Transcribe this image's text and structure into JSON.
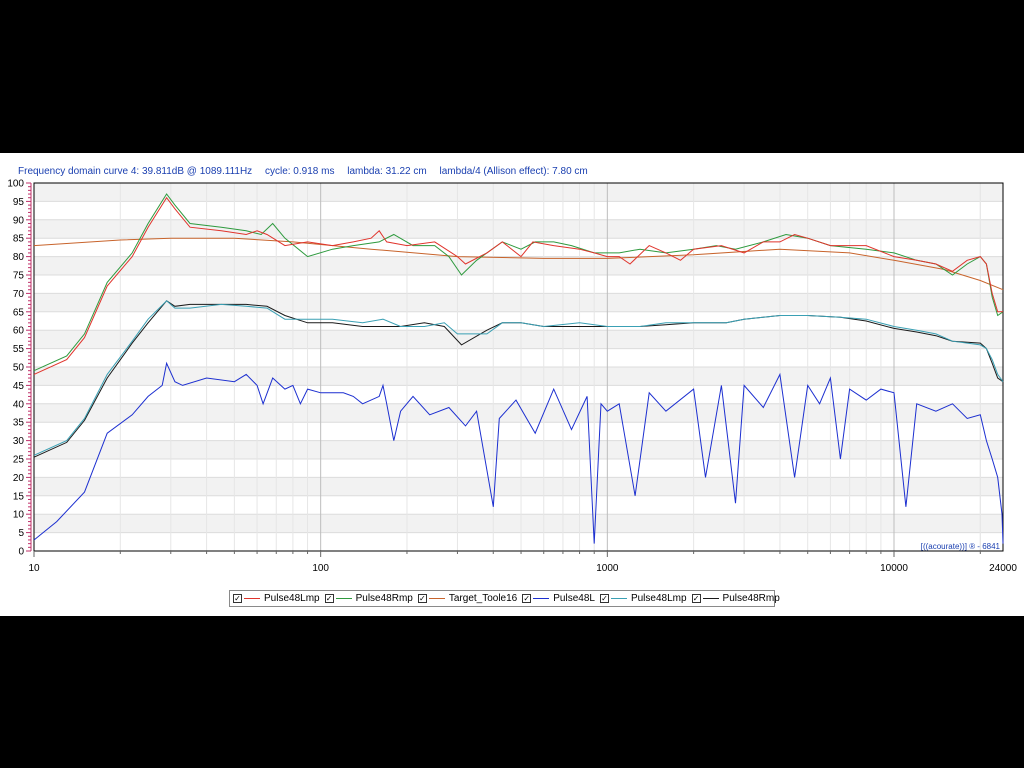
{
  "header": {
    "curve": "Frequency domain curve 4:  39.811dB @ 1089.111Hz",
    "cycle": "cycle: 0.918 ms",
    "lambda": "lambda: 31.22 cm",
    "allison": "lambda/4 (Allison effect): 7.80 cm"
  },
  "watermark": "[((acourate))] ® - 6841",
  "colors": {
    "background": "#ffffff",
    "frame": "#000000",
    "grid": "#d8d8d8"
  },
  "chart_data": {
    "type": "line",
    "x_scale": "log",
    "xlim": [
      10,
      24000
    ],
    "ylim": [
      0,
      100
    ],
    "x_ticks": [
      10,
      100,
      1000,
      10000,
      24000
    ],
    "x_tick_labels": [
      "10",
      "100",
      "1000",
      "10000",
      "24000"
    ],
    "y_ticks": [
      0,
      5,
      10,
      15,
      20,
      25,
      30,
      35,
      40,
      45,
      50,
      55,
      60,
      65,
      70,
      75,
      80,
      85,
      90,
      95,
      100
    ],
    "grid": true,
    "legend_position": "bottom",
    "series": [
      {
        "name": "Pulse48Lmp",
        "color": "#e0342c",
        "visible": true,
        "points": [
          [
            10,
            48
          ],
          [
            13,
            52
          ],
          [
            15,
            58
          ],
          [
            18,
            72
          ],
          [
            22,
            80
          ],
          [
            25,
            88
          ],
          [
            29,
            96
          ],
          [
            31,
            93
          ],
          [
            35,
            88
          ],
          [
            45,
            87
          ],
          [
            55,
            86
          ],
          [
            60,
            87
          ],
          [
            65,
            86
          ],
          [
            75,
            83
          ],
          [
            90,
            84
          ],
          [
            110,
            83
          ],
          [
            130,
            84
          ],
          [
            150,
            85
          ],
          [
            160,
            87
          ],
          [
            170,
            84
          ],
          [
            200,
            83
          ],
          [
            250,
            84
          ],
          [
            300,
            80
          ],
          [
            320,
            78
          ],
          [
            380,
            81
          ],
          [
            430,
            84
          ],
          [
            500,
            80
          ],
          [
            550,
            84
          ],
          [
            650,
            83
          ],
          [
            800,
            82
          ],
          [
            900,
            81
          ],
          [
            1000,
            80
          ],
          [
            1100,
            80
          ],
          [
            1200,
            78
          ],
          [
            1400,
            83
          ],
          [
            1600,
            81
          ],
          [
            1800,
            79
          ],
          [
            2000,
            82
          ],
          [
            2500,
            83
          ],
          [
            3000,
            81
          ],
          [
            3500,
            84
          ],
          [
            4000,
            84
          ],
          [
            4500,
            86
          ],
          [
            5000,
            85
          ],
          [
            6000,
            83
          ],
          [
            7000,
            83
          ],
          [
            8000,
            83
          ],
          [
            10000,
            80
          ],
          [
            12000,
            79
          ],
          [
            14000,
            78
          ],
          [
            16000,
            76
          ],
          [
            18000,
            79
          ],
          [
            20000,
            80
          ],
          [
            21000,
            78
          ],
          [
            22000,
            70
          ],
          [
            23000,
            65
          ],
          [
            24000,
            65
          ]
        ]
      },
      {
        "name": "Pulse48Rmp",
        "color": "#2e9a3e",
        "visible": true,
        "points": [
          [
            10,
            49
          ],
          [
            13,
            53
          ],
          [
            15,
            59
          ],
          [
            18,
            73
          ],
          [
            22,
            81
          ],
          [
            25,
            89
          ],
          [
            29,
            97
          ],
          [
            31,
            94
          ],
          [
            35,
            89
          ],
          [
            45,
            88
          ],
          [
            55,
            87
          ],
          [
            62,
            86
          ],
          [
            68,
            89
          ],
          [
            75,
            85
          ],
          [
            90,
            80
          ],
          [
            110,
            82
          ],
          [
            130,
            83
          ],
          [
            160,
            84
          ],
          [
            180,
            86
          ],
          [
            210,
            83
          ],
          [
            250,
            83
          ],
          [
            280,
            80
          ],
          [
            310,
            75
          ],
          [
            350,
            79
          ],
          [
            430,
            84
          ],
          [
            500,
            82
          ],
          [
            560,
            84
          ],
          [
            650,
            84
          ],
          [
            750,
            83
          ],
          [
            900,
            81
          ],
          [
            1100,
            81
          ],
          [
            1300,
            82
          ],
          [
            1600,
            81
          ],
          [
            2000,
            82
          ],
          [
            2400,
            83
          ],
          [
            2800,
            82
          ],
          [
            3500,
            84
          ],
          [
            4200,
            86
          ],
          [
            5000,
            85
          ],
          [
            6000,
            83
          ],
          [
            8000,
            82
          ],
          [
            10000,
            81
          ],
          [
            12000,
            79
          ],
          [
            14000,
            78
          ],
          [
            16000,
            75
          ],
          [
            18000,
            78
          ],
          [
            20000,
            80
          ],
          [
            21000,
            78
          ],
          [
            22000,
            69
          ],
          [
            23000,
            64
          ],
          [
            24000,
            65
          ]
        ]
      },
      {
        "name": "Target_Toole16",
        "color": "#c8642c",
        "visible": true,
        "points": [
          [
            10,
            83
          ],
          [
            20,
            84.5
          ],
          [
            30,
            85
          ],
          [
            50,
            85
          ],
          [
            80,
            84
          ],
          [
            150,
            82
          ],
          [
            300,
            80
          ],
          [
            600,
            79.5
          ],
          [
            1000,
            79.5
          ],
          [
            2000,
            80.5
          ],
          [
            4000,
            82
          ],
          [
            7000,
            81
          ],
          [
            10000,
            79
          ],
          [
            15000,
            76.5
          ],
          [
            20000,
            73.5
          ],
          [
            24000,
            71
          ]
        ]
      },
      {
        "name": "Pulse48L",
        "color": "#1c2fd0",
        "visible": true,
        "points": [
          [
            10,
            3
          ],
          [
            12,
            8
          ],
          [
            15,
            16
          ],
          [
            18,
            32
          ],
          [
            22,
            37
          ],
          [
            25,
            42
          ],
          [
            28,
            45
          ],
          [
            29,
            51
          ],
          [
            31,
            46
          ],
          [
            33,
            45
          ],
          [
            40,
            47
          ],
          [
            50,
            46
          ],
          [
            55,
            48
          ],
          [
            60,
            45
          ],
          [
            63,
            40
          ],
          [
            68,
            47
          ],
          [
            75,
            44
          ],
          [
            80,
            45
          ],
          [
            85,
            40
          ],
          [
            90,
            44
          ],
          [
            100,
            43
          ],
          [
            120,
            43
          ],
          [
            130,
            42
          ],
          [
            140,
            40
          ],
          [
            160,
            42
          ],
          [
            165,
            45
          ],
          [
            170,
            40
          ],
          [
            180,
            30
          ],
          [
            190,
            38
          ],
          [
            210,
            42
          ],
          [
            240,
            37
          ],
          [
            280,
            39
          ],
          [
            320,
            34
          ],
          [
            350,
            38
          ],
          [
            400,
            12
          ],
          [
            420,
            36
          ],
          [
            480,
            41
          ],
          [
            560,
            32
          ],
          [
            650,
            44
          ],
          [
            750,
            33
          ],
          [
            850,
            42
          ],
          [
            900,
            2
          ],
          [
            950,
            40
          ],
          [
            1000,
            38
          ],
          [
            1100,
            40
          ],
          [
            1250,
            15
          ],
          [
            1400,
            43
          ],
          [
            1600,
            38
          ],
          [
            2000,
            44
          ],
          [
            2200,
            20
          ],
          [
            2500,
            45
          ],
          [
            2800,
            13
          ],
          [
            3000,
            45
          ],
          [
            3500,
            39
          ],
          [
            4000,
            48
          ],
          [
            4500,
            20
          ],
          [
            5000,
            45
          ],
          [
            5500,
            40
          ],
          [
            6000,
            47
          ],
          [
            6500,
            25
          ],
          [
            7000,
            44
          ],
          [
            8000,
            41
          ],
          [
            9000,
            44
          ],
          [
            10000,
            43
          ],
          [
            11000,
            12
          ],
          [
            12000,
            40
          ],
          [
            14000,
            38
          ],
          [
            16000,
            40
          ],
          [
            18000,
            36
          ],
          [
            20000,
            37
          ],
          [
            21000,
            30
          ],
          [
            22000,
            25
          ],
          [
            23000,
            20
          ],
          [
            23800,
            10
          ],
          [
            24000,
            2
          ]
        ]
      },
      {
        "name": "Pulse48Lmp",
        "color": "#3aa0b4",
        "visible": true,
        "points": [
          [
            10,
            26
          ],
          [
            13,
            30
          ],
          [
            15,
            36
          ],
          [
            18,
            48
          ],
          [
            22,
            57
          ],
          [
            25,
            63
          ],
          [
            29,
            68
          ],
          [
            31,
            66
          ],
          [
            35,
            66
          ],
          [
            45,
            67
          ],
          [
            55,
            66.5
          ],
          [
            65,
            66
          ],
          [
            75,
            63
          ],
          [
            90,
            63
          ],
          [
            110,
            63
          ],
          [
            140,
            62
          ],
          [
            165,
            63
          ],
          [
            190,
            61
          ],
          [
            230,
            61
          ],
          [
            270,
            62
          ],
          [
            300,
            59
          ],
          [
            380,
            59
          ],
          [
            430,
            62
          ],
          [
            500,
            62
          ],
          [
            600,
            61
          ],
          [
            800,
            62
          ],
          [
            1000,
            61
          ],
          [
            1300,
            61
          ],
          [
            1600,
            62
          ],
          [
            2000,
            62
          ],
          [
            2600,
            62
          ],
          [
            3000,
            63
          ],
          [
            4000,
            64
          ],
          [
            5000,
            64
          ],
          [
            6500,
            63.5
          ],
          [
            8000,
            63
          ],
          [
            10000,
            61
          ],
          [
            12000,
            60
          ],
          [
            14000,
            59
          ],
          [
            16000,
            57
          ],
          [
            20000,
            56
          ],
          [
            21000,
            55
          ],
          [
            22000,
            52
          ],
          [
            23000,
            48
          ],
          [
            24000,
            46
          ]
        ]
      },
      {
        "name": "Pulse48Rmp",
        "color": "#1a1a1a",
        "visible": true,
        "points": [
          [
            10,
            25.5
          ],
          [
            13,
            29.5
          ],
          [
            15,
            35.5
          ],
          [
            18,
            47
          ],
          [
            22,
            56.5
          ],
          [
            25,
            62
          ],
          [
            29,
            68
          ],
          [
            31,
            66.5
          ],
          [
            35,
            67
          ],
          [
            45,
            67
          ],
          [
            55,
            67
          ],
          [
            65,
            66.5
          ],
          [
            75,
            64
          ],
          [
            90,
            62
          ],
          [
            110,
            62
          ],
          [
            140,
            61
          ],
          [
            165,
            61
          ],
          [
            190,
            61
          ],
          [
            230,
            62
          ],
          [
            270,
            61
          ],
          [
            310,
            56
          ],
          [
            380,
            60
          ],
          [
            430,
            62
          ],
          [
            500,
            62
          ],
          [
            600,
            61
          ],
          [
            800,
            61
          ],
          [
            1000,
            61
          ],
          [
            1300,
            61
          ],
          [
            1600,
            61.5
          ],
          [
            2000,
            62
          ],
          [
            2600,
            62
          ],
          [
            3000,
            63
          ],
          [
            4000,
            64
          ],
          [
            5000,
            64
          ],
          [
            6500,
            63.5
          ],
          [
            8000,
            62.5
          ],
          [
            10000,
            60.5
          ],
          [
            12000,
            59.5
          ],
          [
            14000,
            58.5
          ],
          [
            16000,
            57
          ],
          [
            20000,
            56.5
          ],
          [
            21000,
            55
          ],
          [
            22000,
            51
          ],
          [
            23000,
            47
          ],
          [
            24000,
            46
          ]
        ]
      }
    ]
  }
}
